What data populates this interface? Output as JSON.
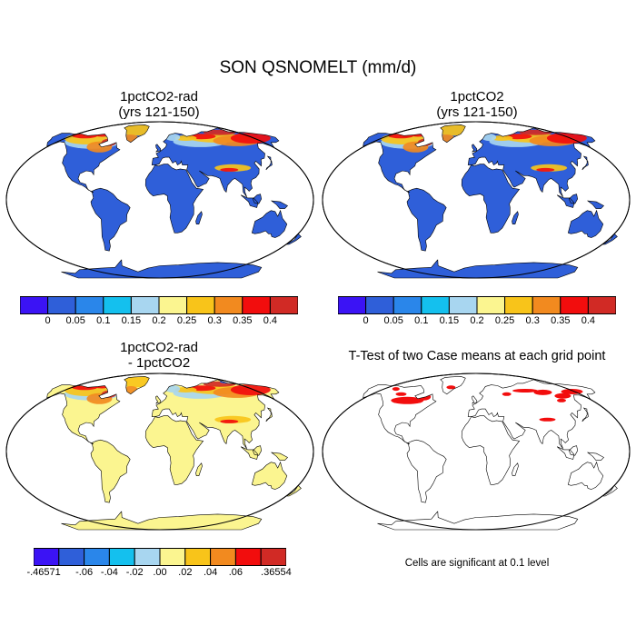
{
  "title": "SON QSNOMELT (mm/d)",
  "panels": [
    {
      "title1": "1pctCO2-rad",
      "title2": "(yrs 121-150)"
    },
    {
      "title1": "1pctCO2",
      "title2": "(yrs 121-150)"
    },
    {
      "title1": "1pctCO2-rad",
      "title2": "- 1pctCO2"
    },
    {
      "title1": "T-Test of two Case means at each grid point",
      "title2": ""
    }
  ],
  "colorbar_abs": {
    "colors": [
      "#3b13f5",
      "#2f5fd9",
      "#2a86ea",
      "#14c0ee",
      "#a8d6f0",
      "#fbf590",
      "#f8c41a",
      "#f28a1f",
      "#f20d0d",
      "#d12a25"
    ],
    "labels": [
      "0",
      "0.05",
      "0.1",
      "0.15",
      "0.2",
      "0.25",
      "0.3",
      "0.35",
      "0.4"
    ]
  },
  "colorbar_diff": {
    "colors": [
      "#3b13f5",
      "#2f5fd9",
      "#2a86ea",
      "#14c0ee",
      "#a8d6f0",
      "#fbf590",
      "#f8c41a",
      "#f28a1f",
      "#f20d0d",
      "#d12a25"
    ],
    "labels": [
      -0.46571,
      -0.06,
      -0.04,
      -0.02,
      0.0,
      0.02,
      0.04,
      0.06,
      0.36554
    ],
    "label_text": [
      "-.46571",
      "-.06",
      "-.04",
      "-.02",
      ".00",
      ".02",
      ".04",
      ".06",
      ".36554"
    ]
  },
  "ttest_note": "Cells are significant at 0.1 level",
  "colors": {
    "ocean": "#ffffff",
    "land_low": "#2f5fd9",
    "diff_land": "#fbf590",
    "significant": "#f20d0d"
  }
}
